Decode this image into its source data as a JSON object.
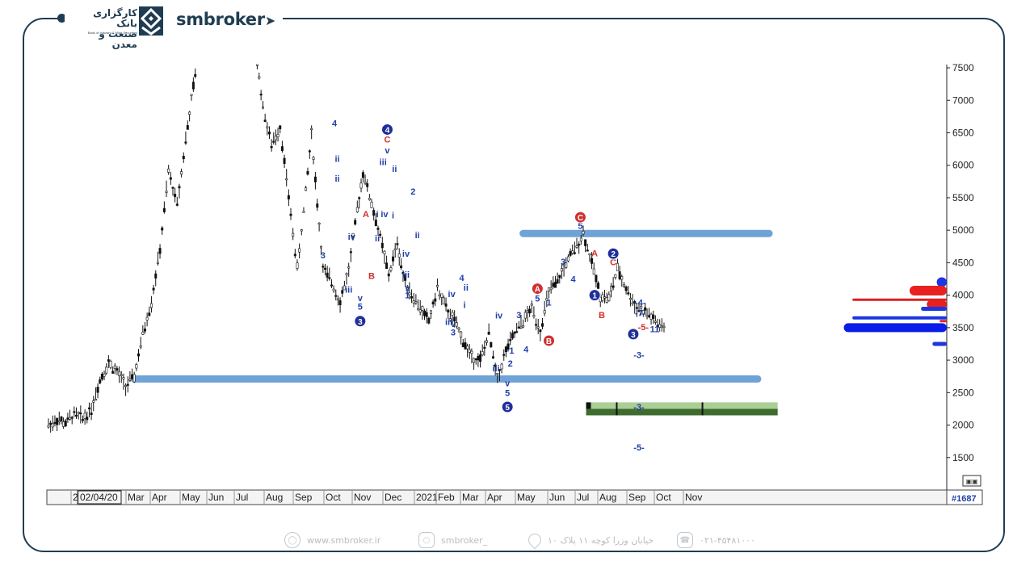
{
  "brand": {
    "company_fa_line1": "کارگزاری بانک",
    "company_fa_line2": "صنعت و معدن",
    "company_en": "Bank of Industry & Mine Securities",
    "site_name": "smbroker"
  },
  "footer": {
    "website": "www.smbroker.ir",
    "instagram": "smbroker_",
    "address": "خیابان وزرا کوچه ۱۱ پلاک ۱۰",
    "phone": "۰۲۱-۴۵۴۸۱۰۰۰",
    "globe_icon": "globe-icon",
    "instagram_icon": "instagram-icon",
    "location_icon": "location-pin-icon",
    "phone_icon": "phone-icon"
  },
  "chart_data": {
    "type": "candlestick",
    "x_tick_labels": [
      "2",
      "02/04/20",
      "Mar",
      "Apr",
      "May",
      "Jun",
      "Jul",
      "Aug",
      "Sep",
      "Oct",
      "Nov",
      "Dec",
      "2021",
      "Feb",
      "Mar",
      "Apr",
      "May",
      "Jun",
      "Jul",
      "Aug",
      "Sep",
      "Oct",
      "Nov"
    ],
    "y_tick_labels": [
      "1500",
      "2000",
      "2500",
      "3000",
      "3500",
      "4000",
      "4500",
      "5000",
      "5500",
      "6000",
      "6500",
      "7000",
      "7500"
    ],
    "ylim": [
      1000,
      7550
    ],
    "bar_count_label": "#1687",
    "price_path": [
      [
        0,
        2000
      ],
      [
        0.3,
        2080
      ],
      [
        0.6,
        2030
      ],
      [
        0.9,
        2170
      ],
      [
        1.2,
        2100
      ],
      [
        1.5,
        2250
      ],
      [
        1.8,
        2700
      ],
      [
        2.1,
        2960
      ],
      [
        2.4,
        2820
      ],
      [
        2.7,
        2600
      ],
      [
        3.0,
        2750
      ],
      [
        3.3,
        3400
      ],
      [
        3.6,
        3900
      ],
      [
        3.9,
        4700
      ],
      [
        4.2,
        5900
      ],
      [
        4.5,
        5400
      ],
      [
        4.8,
        6400
      ],
      [
        5.0,
        7000
      ],
      [
        5.2,
        7600
      ],
      [
        7.3,
        7600
      ],
      [
        7.5,
        6900
      ],
      [
        7.8,
        6300
      ],
      [
        8.1,
        6600
      ],
      [
        8.4,
        5500
      ],
      [
        8.7,
        4400
      ],
      [
        9.0,
        5600
      ],
      [
        9.2,
        6500
      ],
      [
        9.4,
        5400
      ],
      [
        9.6,
        4400
      ],
      [
        9.9,
        4200
      ],
      [
        10.2,
        3900
      ],
      [
        10.5,
        4400
      ],
      [
        10.8,
        5300
      ],
      [
        11.0,
        5900
      ],
      [
        11.3,
        5400
      ],
      [
        11.6,
        4900
      ],
      [
        11.9,
        4300
      ],
      [
        12.2,
        4800
      ],
      [
        12.4,
        4300
      ],
      [
        12.7,
        4000
      ],
      [
        13.0,
        3800
      ],
      [
        13.3,
        3600
      ],
      [
        13.6,
        4100
      ],
      [
        13.9,
        3800
      ],
      [
        14.2,
        3600
      ],
      [
        14.5,
        3300
      ],
      [
        14.8,
        3050
      ],
      [
        15.1,
        3000
      ],
      [
        15.4,
        3400
      ],
      [
        15.7,
        2700
      ],
      [
        16.0,
        3150
      ],
      [
        16.3,
        3400
      ],
      [
        16.6,
        3600
      ],
      [
        16.9,
        3800
      ],
      [
        17.2,
        3450
      ],
      [
        17.5,
        4050
      ],
      [
        17.8,
        4200
      ],
      [
        18.1,
        4500
      ],
      [
        18.4,
        4700
      ],
      [
        18.7,
        4950
      ],
      [
        19.0,
        4500
      ],
      [
        19.3,
        4000
      ],
      [
        19.6,
        3950
      ],
      [
        19.9,
        4400
      ],
      [
        20.2,
        4100
      ],
      [
        20.5,
        3850
      ],
      [
        20.8,
        3750
      ],
      [
        21.0,
        3700
      ],
      [
        21.3,
        3550
      ],
      [
        21.6,
        3450
      ]
    ],
    "wave_labels": [
      {
        "text": "4",
        "x": 10.0,
        "y": 6600,
        "color": "#1f3fa8"
      },
      {
        "text": "ii",
        "x": 10.1,
        "y": 6050,
        "color": "#1f3fa8"
      },
      {
        "text": "ii",
        "x": 10.1,
        "y": 5750,
        "color": "#1f3fa8"
      },
      {
        "text": "3",
        "x": 9.6,
        "y": 4570,
        "color": "#1f3fa8"
      },
      {
        "text": "iv",
        "x": 10.6,
        "y": 4850,
        "color": "#1f3fa8"
      },
      {
        "text": "iii",
        "x": 10.5,
        "y": 4040,
        "color": "#1f3fa8"
      },
      {
        "text": "v",
        "x": 10.9,
        "y": 3910,
        "color": "#1f3fa8"
      },
      {
        "text": "5",
        "x": 10.9,
        "y": 3780,
        "color": "#1f3fa8"
      },
      {
        "text": "A",
        "x": 11.1,
        "y": 5200,
        "color": "#d03030"
      },
      {
        "text": "B",
        "x": 11.3,
        "y": 4250,
        "color": "#d03030"
      },
      {
        "text": "ii",
        "x": 11.5,
        "y": 4830,
        "color": "#1f3fa8"
      },
      {
        "text": "i",
        "x": 11.5,
        "y": 5200,
        "color": "#1f3fa8"
      },
      {
        "text": "iv",
        "x": 11.75,
        "y": 5200,
        "color": "#1f3fa8"
      },
      {
        "text": "i",
        "x": 12.05,
        "y": 5180,
        "color": "#1f3fa8"
      },
      {
        "text": "ii",
        "x": 12.1,
        "y": 5900,
        "color": "#1f3fa8"
      },
      {
        "text": "iii",
        "x": 11.7,
        "y": 6000,
        "color": "#1f3fa8"
      },
      {
        "text": "v",
        "x": 11.85,
        "y": 6180,
        "color": "#1f3fa8"
      },
      {
        "text": "C",
        "x": 11.85,
        "y": 6350,
        "color": "#d03030"
      },
      {
        "text": "2",
        "x": 12.75,
        "y": 5550,
        "color": "#1f3fa8"
      },
      {
        "text": "ii",
        "x": 12.9,
        "y": 4880,
        "color": "#1f3fa8"
      },
      {
        "text": "iv",
        "x": 12.5,
        "y": 4590,
        "color": "#1f3fa8"
      },
      {
        "text": "iii",
        "x": 12.5,
        "y": 4270,
        "color": "#1f3fa8"
      },
      {
        "text": "v",
        "x": 12.55,
        "y": 4070,
        "color": "#1f3fa8"
      },
      {
        "text": "1",
        "x": 12.55,
        "y": 3950,
        "color": "#1f3fa8"
      },
      {
        "text": "iv",
        "x": 14.1,
        "y": 3970,
        "color": "#1f3fa8"
      },
      {
        "text": "iii",
        "x": 14.0,
        "y": 3540,
        "color": "#1f3fa8"
      },
      {
        "text": "v",
        "x": 14.15,
        "y": 3510,
        "color": "#1f3fa8"
      },
      {
        "text": "3",
        "x": 14.15,
        "y": 3380,
        "color": "#1f3fa8"
      },
      {
        "text": "4",
        "x": 14.45,
        "y": 4220,
        "color": "#1f3fa8"
      },
      {
        "text": "ii",
        "x": 14.6,
        "y": 4070,
        "color": "#1f3fa8"
      },
      {
        "text": "i",
        "x": 14.55,
        "y": 3800,
        "color": "#1f3fa8"
      },
      {
        "text": "iv",
        "x": 15.75,
        "y": 3640,
        "color": "#1f3fa8"
      },
      {
        "text": "iii",
        "x": 15.65,
        "y": 2830,
        "color": "#1f3fa8"
      },
      {
        "text": "1",
        "x": 16.2,
        "y": 3100,
        "color": "#1f3fa8"
      },
      {
        "text": "2",
        "x": 16.15,
        "y": 2900,
        "color": "#1f3fa8"
      },
      {
        "text": "v",
        "x": 16.05,
        "y": 2600,
        "color": "#1f3fa8"
      },
      {
        "text": "5",
        "x": 16.05,
        "y": 2450,
        "color": "#1f3fa8"
      },
      {
        "text": "3",
        "x": 16.45,
        "y": 3650,
        "color": "#1f3fa8"
      },
      {
        "text": "4",
        "x": 16.7,
        "y": 3120,
        "color": "#1f3fa8"
      },
      {
        "text": "5",
        "x": 17.1,
        "y": 3900,
        "color": "#1f3fa8"
      },
      {
        "text": "1",
        "x": 17.5,
        "y": 3840,
        "color": "#1f3fa8"
      },
      {
        "text": "2",
        "x": 17.6,
        "y": 3250,
        "color": "#1f3fa8"
      },
      {
        "text": "3",
        "x": 18.0,
        "y": 4470,
        "color": "#1f3fa8"
      },
      {
        "text": "4",
        "x": 18.35,
        "y": 4200,
        "color": "#1f3fa8"
      },
      {
        "text": "5",
        "x": 18.6,
        "y": 5020,
        "color": "#1f3fa8"
      },
      {
        "text": "A",
        "x": 19.1,
        "y": 4600,
        "color": "#d03030"
      },
      {
        "text": "B",
        "x": 19.35,
        "y": 3650,
        "color": "#d03030"
      },
      {
        "text": "C",
        "x": 19.75,
        "y": 4460,
        "color": "#d03030"
      },
      {
        "text": "-3-",
        "x": 20.65,
        "y": 3030,
        "color": "#1f3fa8"
      },
      {
        "text": "-3-",
        "x": 20.65,
        "y": 2230,
        "color": "#1f3fa8"
      },
      {
        "text": "-5-",
        "x": 20.65,
        "y": 1610,
        "color": "#1f3fa8"
      },
      {
        "text": "-4-",
        "x": 20.7,
        "y": 3840,
        "color": "#1f3fa8"
      },
      {
        "text": "-7-",
        "x": 20.7,
        "y": 3680,
        "color": "#1f3fa8"
      },
      {
        "text": "-5-",
        "x": 20.8,
        "y": 3460,
        "color": "#d03030"
      },
      {
        "text": "11",
        "x": 21.2,
        "y": 3430,
        "color": "#1f3fa8"
      }
    ],
    "wave_circles": [
      {
        "text": "4",
        "x": 11.85,
        "y": 6550,
        "color": "#1f2f9a"
      },
      {
        "text": "3",
        "x": 10.9,
        "y": 3600,
        "color": "#1f2f9a"
      },
      {
        "text": "5",
        "x": 16.05,
        "y": 2280,
        "color": "#1f2f9a"
      },
      {
        "text": "A",
        "x": 17.1,
        "y": 4100,
        "color": "#d03030"
      },
      {
        "text": "B",
        "x": 17.5,
        "y": 3300,
        "color": "#d03030"
      },
      {
        "text": "C",
        "x": 18.6,
        "y": 5200,
        "color": "#d03030"
      },
      {
        "text": "1",
        "x": 19.1,
        "y": 4000,
        "color": "#1f2f9a"
      },
      {
        "text": "2",
        "x": 19.75,
        "y": 4640,
        "color": "#1f2f9a"
      },
      {
        "text": "3",
        "x": 20.45,
        "y": 3400,
        "color": "#1f2f9a"
      }
    ],
    "support_zones": [
      {
        "x_start": 3.0,
        "x_end": 24.8,
        "y": 2710
      },
      {
        "x_start": 16.6,
        "x_end": 25.2,
        "y": 4950
      }
    ],
    "target_box": {
      "x_start": 18.8,
      "x_end": 25.5,
      "y_low": 2150,
      "y_high": 2350
    },
    "volume_profile": [
      {
        "y": 4200,
        "len": 0.35,
        "color": "#1c36e0",
        "h": 12
      },
      {
        "y": 4070,
        "len": 1.3,
        "color": "#e82020",
        "h": 12
      },
      {
        "y": 3930,
        "len": 3.3,
        "color": "#d92020",
        "h": 3
      },
      {
        "y": 3860,
        "len": 0.7,
        "color": "#e82020",
        "h": 10
      },
      {
        "y": 3790,
        "len": 0.9,
        "color": "#1c36e0",
        "h": 5
      },
      {
        "y": 3650,
        "len": 3.3,
        "color": "#1c36e0",
        "h": 4
      },
      {
        "y": 3600,
        "len": 0.25,
        "color": "#e82020",
        "h": 3
      },
      {
        "y": 3500,
        "len": 3.6,
        "color": "#0a1de8",
        "h": 11
      },
      {
        "y": 3250,
        "len": 0.5,
        "color": "#1c36e0",
        "h": 5
      }
    ]
  }
}
